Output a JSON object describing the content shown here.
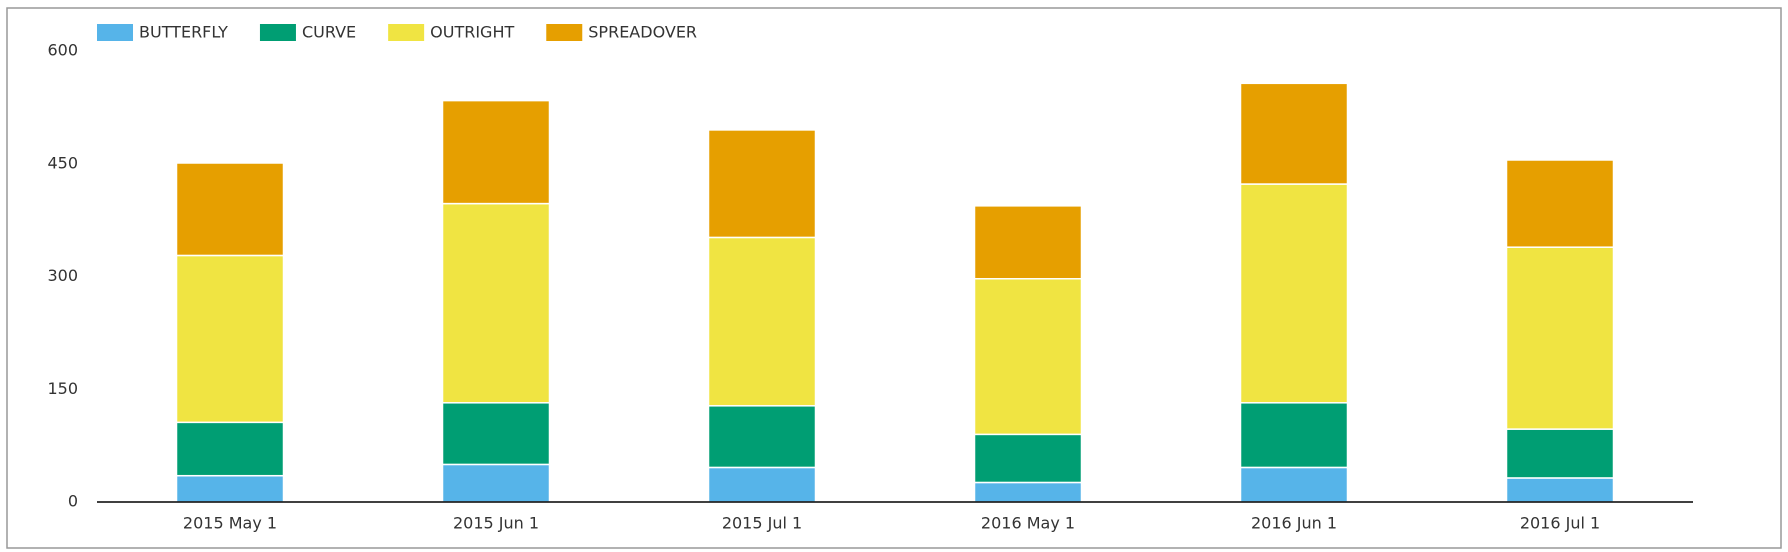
{
  "chart_data": {
    "type": "stacked_bar",
    "categories": [
      "2015 May 1",
      "2015 Jun 1",
      "2015 Jul 1",
      "2016 May 1",
      "2016 Jun 1",
      "2016 Jul 1"
    ],
    "series": [
      {
        "name": "BUTTERFLY",
        "color": "#56b4e9",
        "values": [
          35,
          50,
          46,
          26,
          46,
          32
        ]
      },
      {
        "name": "CURVE",
        "color": "#009e73",
        "values": [
          71,
          82,
          82,
          64,
          86,
          65
        ]
      },
      {
        "name": "OUTRIGHT",
        "color": "#f0e442",
        "values": [
          222,
          265,
          224,
          207,
          291,
          242
        ]
      },
      {
        "name": "SPREADOVER",
        "color": "#e69f00",
        "values": [
          123,
          137,
          143,
          97,
          134,
          116
        ]
      }
    ],
    "ylim": [
      0,
      600
    ],
    "yticks": [
      0,
      150,
      300,
      450,
      600
    ],
    "legend": "top-left"
  }
}
